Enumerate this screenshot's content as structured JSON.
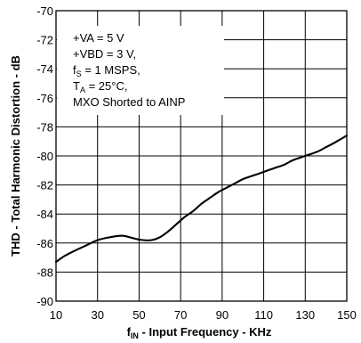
{
  "chart_data": {
    "type": "line",
    "title": "",
    "xlabel": {
      "main": "f",
      "sub": "IN",
      "rest": " - Input Frequency - KHz"
    },
    "ylabel": "THD - Total Harmonic Distortion - dB",
    "xlim": [
      10,
      150
    ],
    "ylim": [
      -90,
      -70
    ],
    "xticks": [
      10,
      30,
      50,
      70,
      90,
      110,
      130,
      150
    ],
    "yticks": [
      -70,
      -72,
      -74,
      -76,
      -78,
      -80,
      -82,
      -84,
      -86,
      -88,
      -90
    ],
    "grid": true,
    "series": [
      {
        "x": [
          10,
          14,
          18,
          24,
          30,
          36,
          42,
          48,
          52,
          56,
          60,
          64,
          68,
          72,
          76,
          80,
          84,
          88,
          92,
          96,
          100,
          104,
          108,
          112,
          116,
          120,
          124,
          128,
          132,
          136,
          140,
          144,
          150
        ],
        "y": [
          -87.3,
          -86.9,
          -86.6,
          -86.2,
          -85.8,
          -85.6,
          -85.5,
          -85.7,
          -85.8,
          -85.8,
          -85.6,
          -85.2,
          -84.7,
          -84.2,
          -83.8,
          -83.3,
          -82.9,
          -82.5,
          -82.2,
          -81.9,
          -81.6,
          -81.4,
          -81.2,
          -81.0,
          -80.8,
          -80.6,
          -80.3,
          -80.1,
          -79.9,
          -79.7,
          -79.4,
          -79.1,
          -78.6
        ]
      }
    ],
    "annotation": {
      "lines": [
        {
          "main": "+VA = 5 V",
          "sub": "",
          "rest": ""
        },
        {
          "main": "+VBD = 3 V,",
          "sub": "",
          "rest": ""
        },
        {
          "main": "f",
          "sub": "S",
          "rest": " = 1 MSPS,"
        },
        {
          "main": "T",
          "sub": "A",
          "rest": " = 25°C,"
        },
        {
          "main": "MXO Shorted to AINP",
          "sub": "",
          "rest": ""
        }
      ]
    }
  }
}
